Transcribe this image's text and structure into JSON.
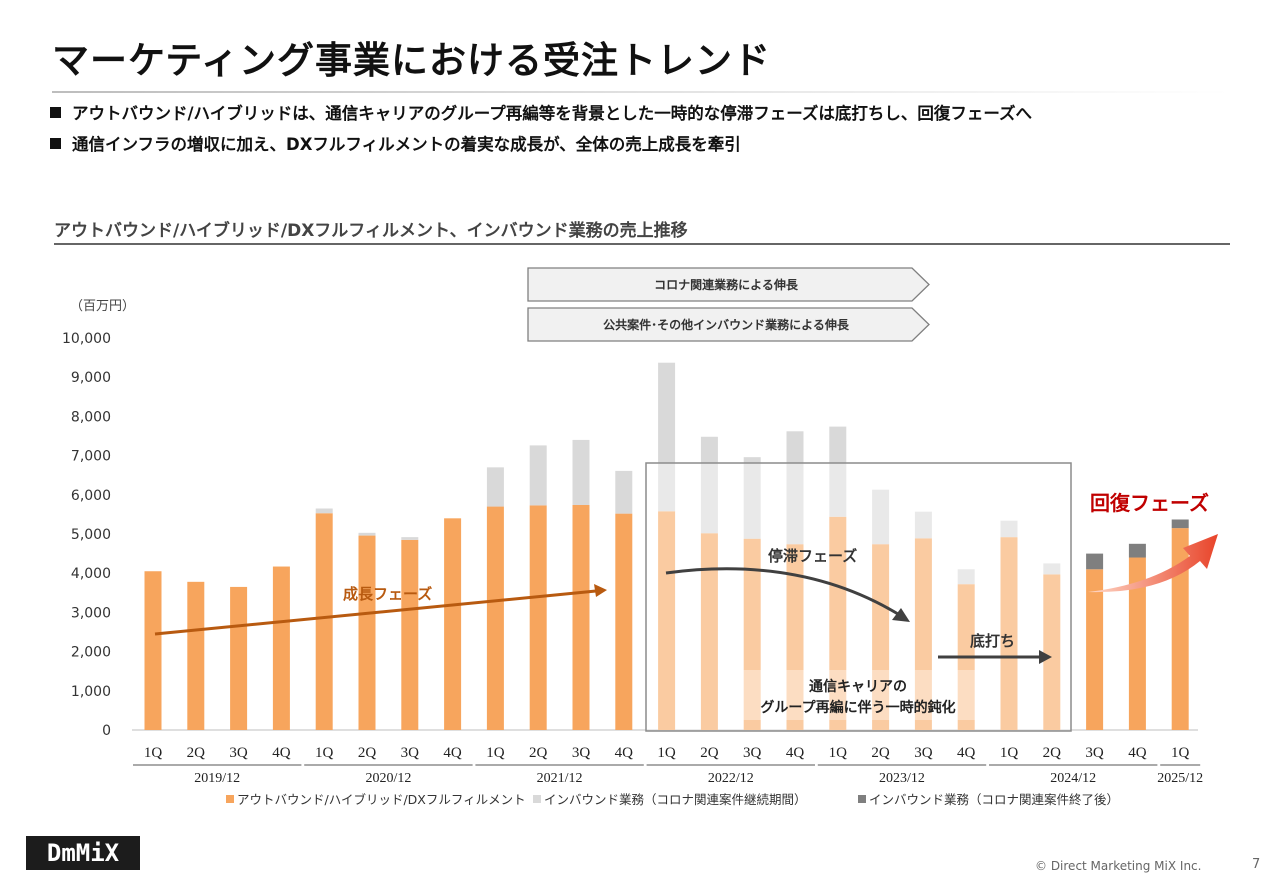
{
  "page": {
    "title": "マーケティング事業における受注トレンド",
    "bullets": [
      "アウトバウンド/ハイブリッドは、通信キャリアのグループ再編等を背景とした一時的な停滞フェーズは底打ちし、回復フェーズへ",
      "通信インフラの増収に加え、DXフルフィルメントの着実な成長が、全体の売上成長を牽引"
    ],
    "section_title": "アウトバウンド/ハイブリッド/DXフルフィルメント、インバウンド業務の売上推移",
    "logo_text": "DmMiX",
    "copyright": "© Direct Marketing MiX Inc.",
    "page_number": "7"
  },
  "chart_data": {
    "type": "bar",
    "stacked": true,
    "unit_label": "（百万円）",
    "ylim": [
      0,
      10000
    ],
    "yticks": [
      0,
      1000,
      2000,
      3000,
      4000,
      5000,
      6000,
      7000,
      8000,
      9000,
      10000
    ],
    "ytick_labels": [
      "0",
      "1,000",
      "2,000",
      "3,000",
      "4,000",
      "5,000",
      "6,000",
      "7,000",
      "8,000",
      "9,000",
      "10,000"
    ],
    "categories": [
      "1Q",
      "2Q",
      "3Q",
      "4Q",
      "1Q",
      "2Q",
      "3Q",
      "4Q",
      "1Q",
      "2Q",
      "3Q",
      "4Q",
      "1Q",
      "2Q",
      "3Q",
      "4Q",
      "1Q",
      "2Q",
      "3Q",
      "4Q",
      "1Q",
      "2Q",
      "3Q",
      "4Q",
      "1Q"
    ],
    "year_groups": [
      {
        "label": "2019/12",
        "start": 0,
        "end": 3
      },
      {
        "label": "2020/12",
        "start": 4,
        "end": 7
      },
      {
        "label": "2021/12",
        "start": 8,
        "end": 11
      },
      {
        "label": "2022/12",
        "start": 12,
        "end": 15
      },
      {
        "label": "2023/12",
        "start": 16,
        "end": 19
      },
      {
        "label": "2024/12",
        "start": 20,
        "end": 23
      },
      {
        "label": "2025/12",
        "start": 24,
        "end": 24
      }
    ],
    "series": [
      {
        "name": "アウトバウンド/ハイブリッド/DXフルフィルメント",
        "color": "#f7a55d",
        "values": [
          4050,
          3780,
          3650,
          4170,
          5530,
          4960,
          4850,
          5400,
          5700,
          5730,
          5740,
          5520,
          5580,
          5020,
          4880,
          4740,
          5440,
          4740,
          4890,
          3720,
          4920,
          3970,
          4100,
          4400,
          5150
        ]
      },
      {
        "name": "インバウンド業務（コロナ関連案件継続期間）",
        "color": "#d9d9d9",
        "values": [
          0,
          0,
          0,
          0,
          120,
          70,
          70,
          0,
          1000,
          1530,
          1660,
          1090,
          3790,
          2460,
          2080,
          2880,
          2300,
          1390,
          680,
          380,
          420,
          280,
          0,
          0,
          0
        ]
      },
      {
        "name": "インバウンド業務（コロナ関連案件終了後）",
        "color": "#7f7f7f",
        "values": [
          0,
          0,
          0,
          0,
          0,
          0,
          0,
          0,
          0,
          0,
          0,
          0,
          0,
          0,
          0,
          0,
          0,
          0,
          0,
          0,
          0,
          0,
          400,
          350,
          220
        ]
      }
    ],
    "annotations": {
      "covid_growth": "コロナ関連業務による伸長",
      "public_growth": "公共案件･その他インバウンド業務による伸長",
      "growth_phase": "成長フェーズ",
      "stagnation_phase": "停滞フェーズ",
      "bottom_out": "底打ち",
      "recovery_phase": "回復フェーズ",
      "carrier_note_line1": "通信キャリアの",
      "carrier_note_line2": "グループ再編に伴う一時的鈍化"
    },
    "colors": {
      "growth_arrow": "#b85a10",
      "stagnation_arrow": "#404040",
      "recovery_text": "#c00000",
      "recovery_arrow": "#e8442a"
    }
  }
}
